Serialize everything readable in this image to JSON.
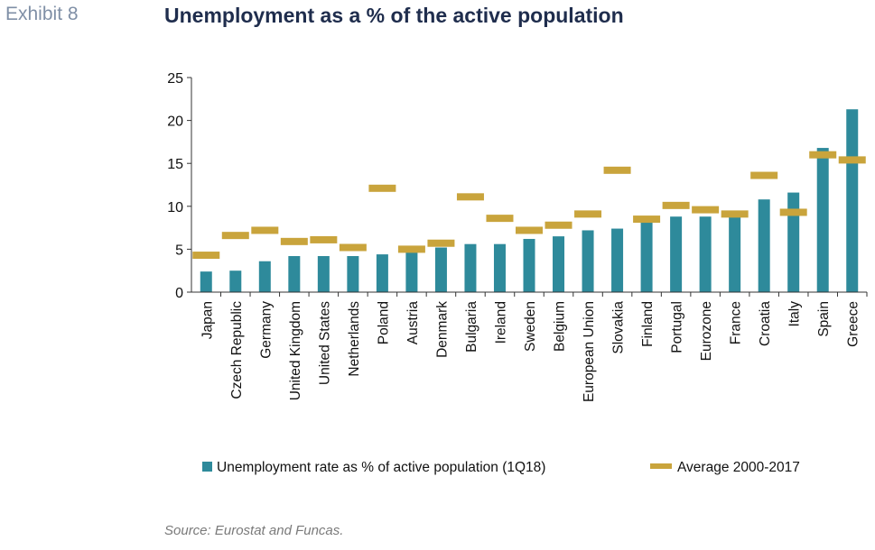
{
  "header": {
    "exhibit_label": "Exhibit 8",
    "title": "Unemployment as a % of the active population"
  },
  "footer": {
    "source": "Source: Eurostat and Funcas."
  },
  "colors": {
    "bar": "#2e8a9b",
    "marker": "#c9a43c",
    "axis": "#333333"
  },
  "chart_data": {
    "type": "bar",
    "title": "Unemployment as a % of the active population",
    "xlabel": "",
    "ylabel": "",
    "ylim": [
      0,
      25
    ],
    "yticks": [
      0,
      5,
      10,
      15,
      20,
      25
    ],
    "grid": false,
    "legend_position": "bottom",
    "categories": [
      "Japan",
      "Czech Republic",
      "Germany",
      "United Kingdom",
      "United States",
      "Netherlands",
      "Poland",
      "Austria",
      "Denmark",
      "Bulgaria",
      "Ireland",
      "Sweden",
      "Belgium",
      "European Union",
      "Slovakia",
      "Finland",
      "Portugal",
      "Eurozone",
      "France",
      "Croatia",
      "Italy",
      "Spain",
      "Greece"
    ],
    "series": [
      {
        "name": "Unemployment rate as % of active population (1Q18)",
        "type": "bar",
        "values": [
          2.4,
          2.5,
          3.6,
          4.2,
          4.2,
          4.2,
          4.4,
          5.0,
          5.2,
          5.6,
          5.6,
          6.2,
          6.5,
          7.2,
          7.4,
          8.2,
          8.8,
          8.8,
          9.5,
          10.8,
          11.6,
          16.8,
          21.3
        ]
      },
      {
        "name": "Average 2000-2017",
        "type": "marker",
        "values": [
          4.3,
          6.6,
          7.2,
          5.9,
          6.1,
          5.2,
          12.1,
          5.0,
          5.7,
          11.1,
          8.6,
          7.2,
          7.8,
          9.1,
          14.2,
          8.5,
          10.1,
          9.6,
          9.1,
          13.6,
          9.3,
          16.0,
          15.4
        ]
      }
    ]
  }
}
